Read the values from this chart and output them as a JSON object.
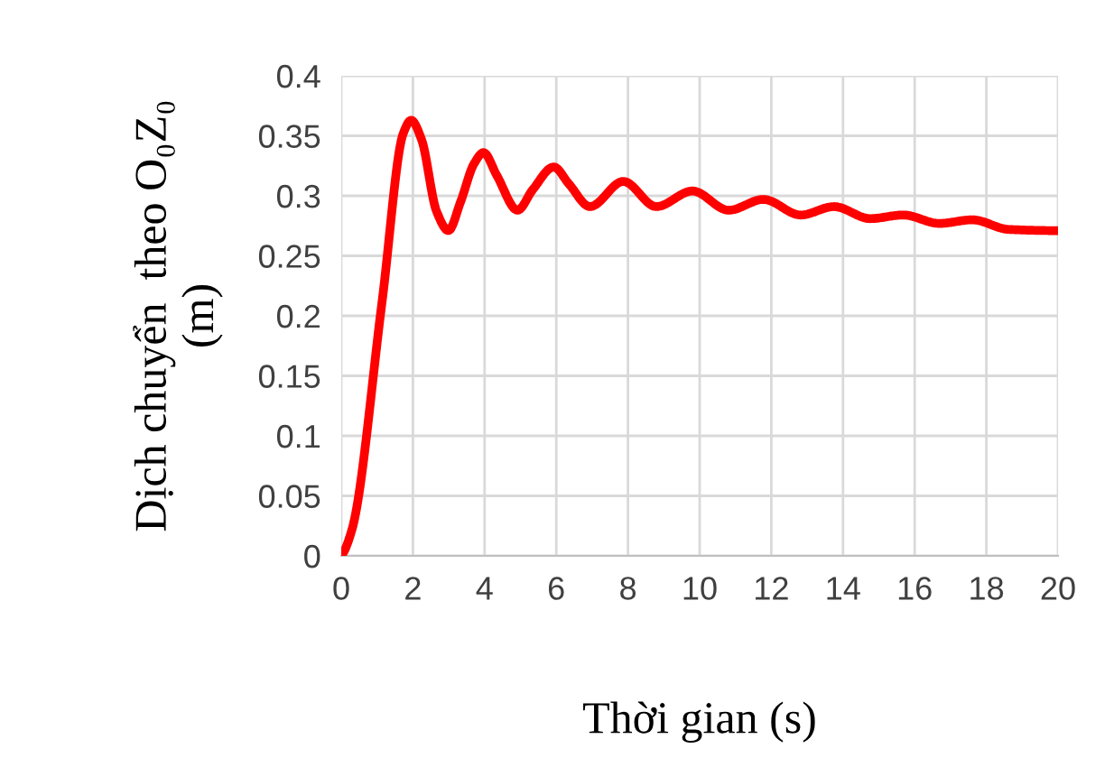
{
  "chart_data": {
    "type": "line",
    "xlabel": "Thời gian (s)",
    "ylabel": "Dịch chuyển  theo O₀Z₀\n(m)",
    "series": [
      {
        "color": "#ff0000",
        "x": [
          0,
          0.3,
          1.14,
          1.73,
          1.95,
          2.24,
          2.66,
          2.99,
          3.33,
          3.71,
          3.97,
          4.34,
          4.92,
          5.34,
          5.93,
          6.35,
          6.94,
          7.87,
          8.79,
          9.8,
          10.81,
          11.78,
          12.82,
          13.75,
          14.76,
          15.68,
          16.69,
          17.61,
          18.62,
          20
        ],
        "values": [
          0,
          0.022,
          0.212,
          0.352,
          0.363,
          0.347,
          0.287,
          0.271,
          0.295,
          0.327,
          0.336,
          0.317,
          0.288,
          0.305,
          0.324,
          0.31,
          0.291,
          0.312,
          0.291,
          0.304,
          0.288,
          0.297,
          0.284,
          0.291,
          0.281,
          0.284,
          0.277,
          0.28,
          0.272,
          0.271
        ]
      }
    ],
    "xlim": [
      0,
      20
    ],
    "xticks": [
      0,
      2,
      4,
      6,
      8,
      10,
      12,
      14,
      16,
      18,
      20
    ],
    "ylim": [
      0,
      0.4
    ],
    "yticks": [
      0,
      0.05,
      0.1,
      0.15,
      0.2,
      0.25,
      0.3,
      0.35,
      0.4
    ],
    "grid": true,
    "marker": "none",
    "line_style": "solid"
  }
}
